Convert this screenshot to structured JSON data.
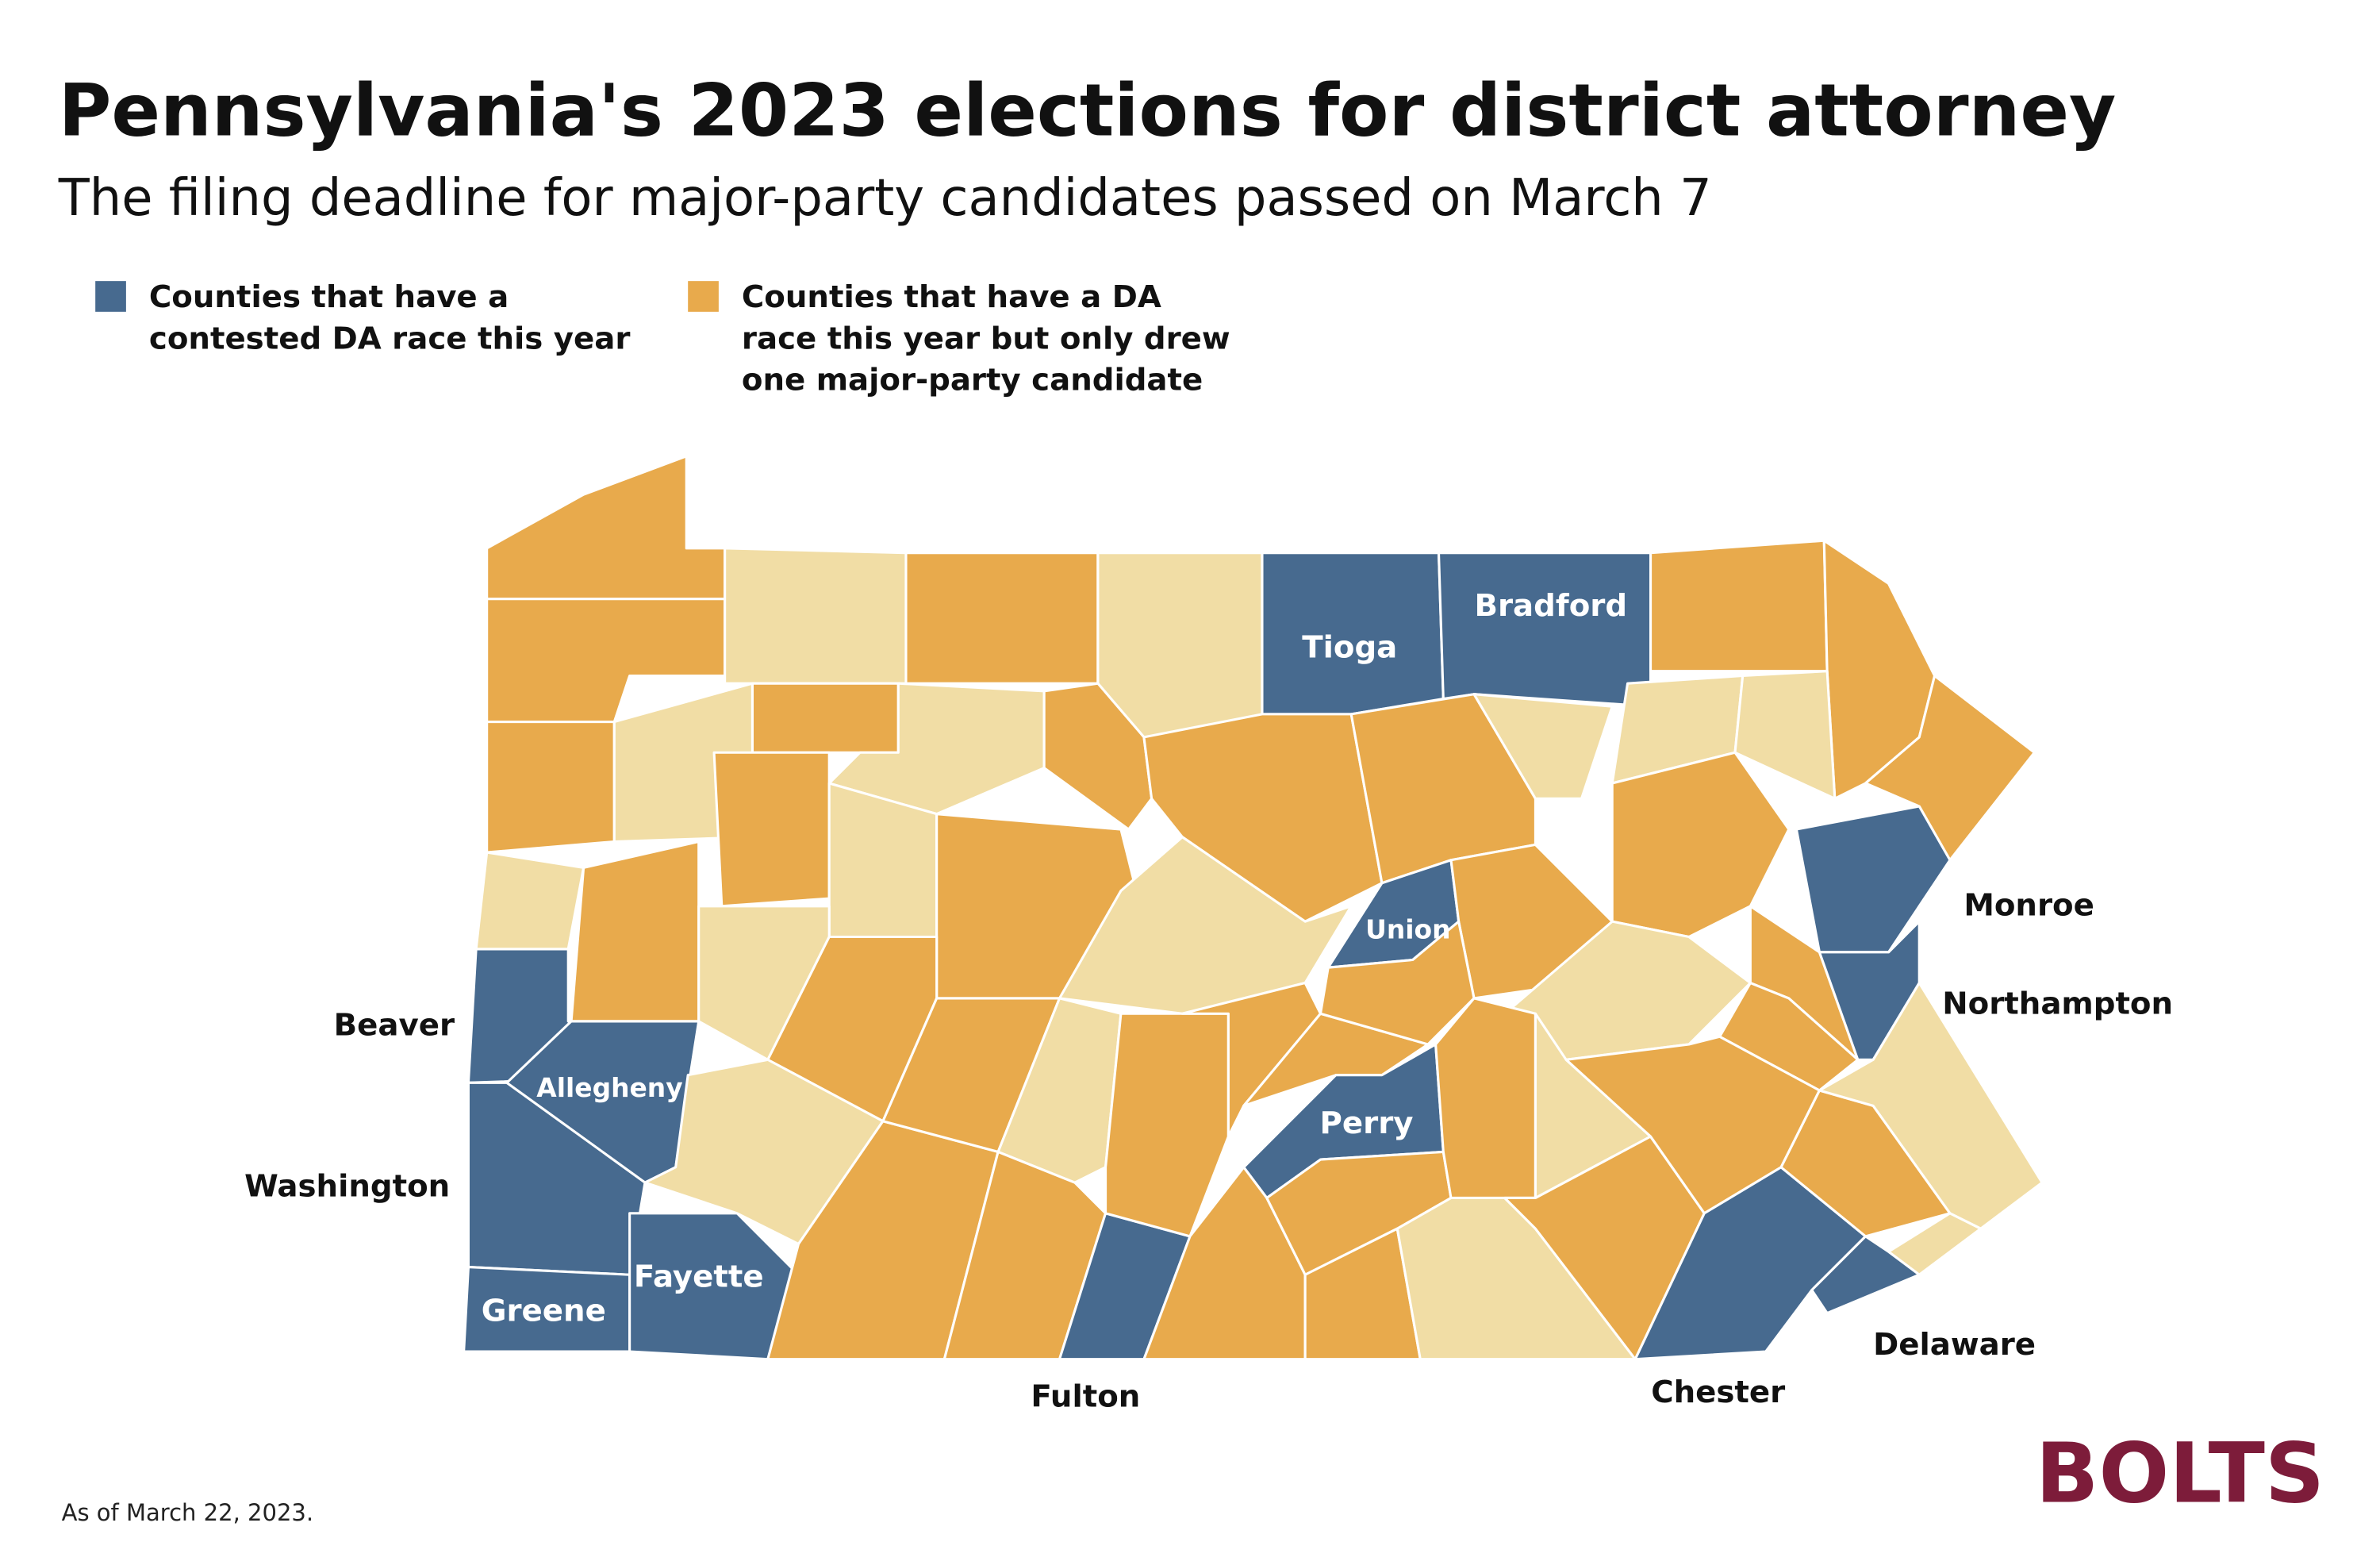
{
  "title": "Pennsylvania's 2023 elections for district attorney",
  "subtitle": "The filing deadline for major-party candidates passed on March 7",
  "legend": [
    {
      "color": "#476a8f",
      "lines": [
        "Counties that have a",
        "contested DA race this year"
      ]
    },
    {
      "color": "#e8aa4c",
      "lines": [
        "Counties that have a DA",
        "race this year but only drew",
        "one major-party candidate"
      ]
    }
  ],
  "counties": [
    "Tioga",
    "Bradford",
    "Union",
    "Allegheny",
    "Perry",
    "Fayette",
    "Greene",
    "Monroe",
    "Northampton",
    "Beaver",
    "Washington",
    "Fulton",
    "Chester",
    "Delaware"
  ],
  "footnote": "As of March 22, 2023.",
  "logo": "BOLTS"
}
